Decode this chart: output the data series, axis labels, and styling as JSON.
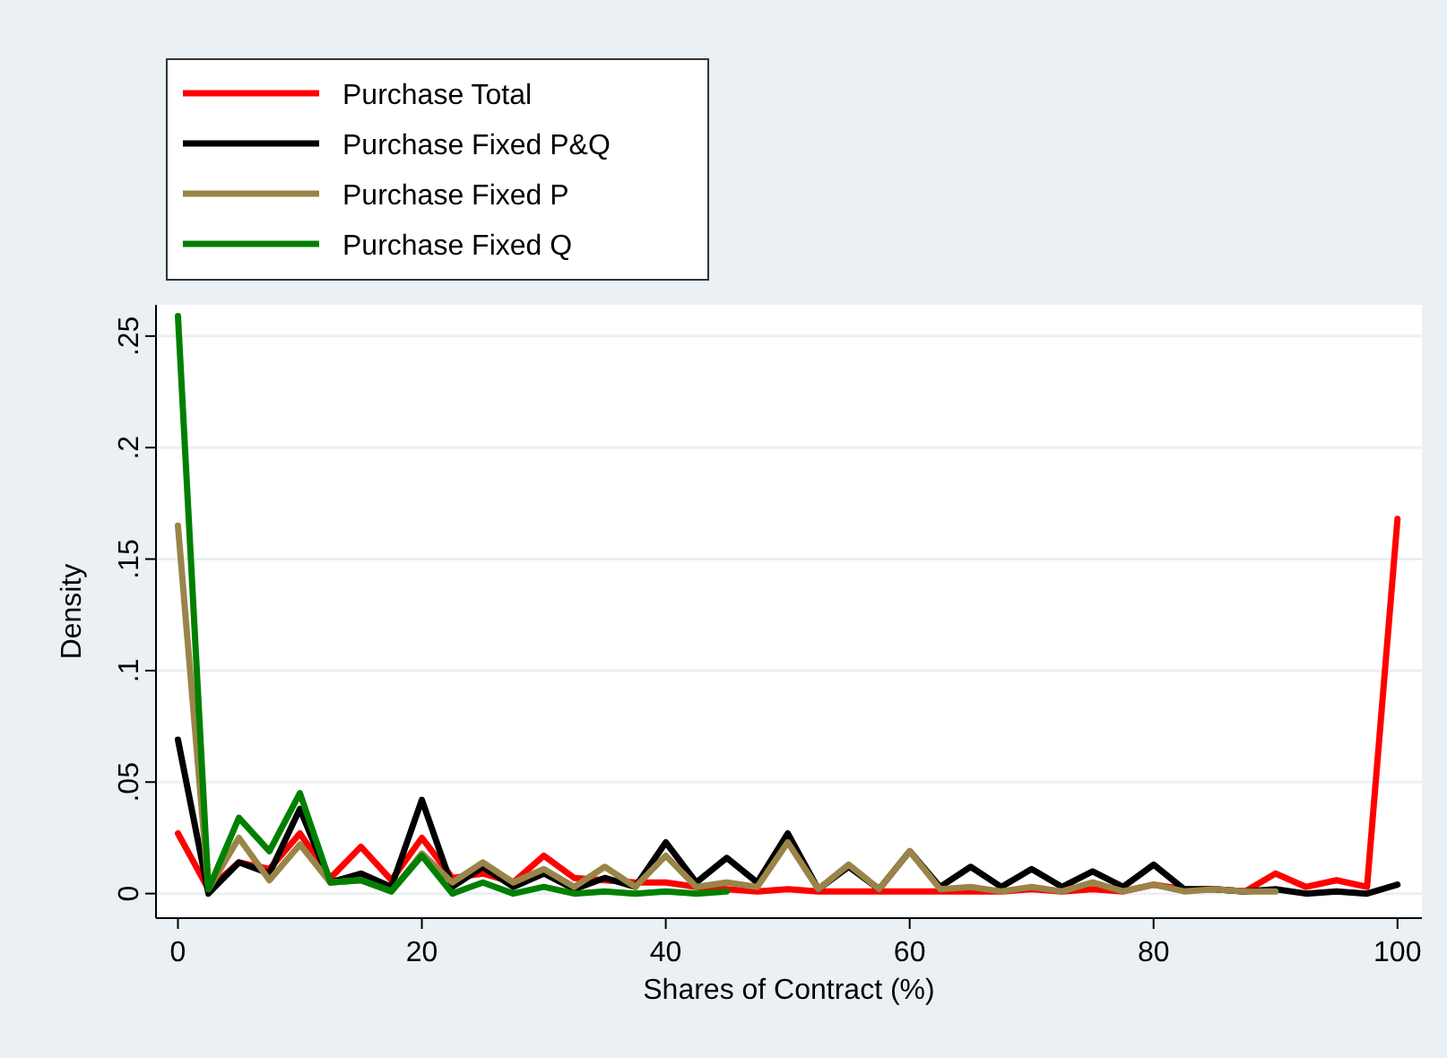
{
  "chart_data": {
    "type": "line",
    "xlabel": "Shares of Contract (%)",
    "ylabel": "Density",
    "x": [
      0,
      2.5,
      5,
      7.5,
      10,
      12.5,
      15,
      17.5,
      20,
      22.5,
      25,
      27.5,
      30,
      32.5,
      35,
      37.5,
      40,
      42.5,
      45,
      47.5,
      50,
      52.5,
      55,
      57.5,
      60,
      62.5,
      65,
      67.5,
      70,
      72.5,
      75,
      77.5,
      80,
      82.5,
      85,
      87.5,
      90,
      92.5,
      95,
      97.5,
      100
    ],
    "series": [
      {
        "name": "Purchase Total",
        "color": "#ff0000",
        "values": [
          0.027,
          0.002,
          0.014,
          0.011,
          0.027,
          0.007,
          0.021,
          0.006,
          0.025,
          0.007,
          0.009,
          0.005,
          0.017,
          0.007,
          0.006,
          0.005,
          0.005,
          0.003,
          0.002,
          0.001,
          0.002,
          0.001,
          0.001,
          0.001,
          0.001,
          0.001,
          0.001,
          0.001,
          0.002,
          0.001,
          0.002,
          0.001,
          0.004,
          0.002,
          0.002,
          0.001,
          0.009,
          0.003,
          0.006,
          0.003,
          0.168
        ]
      },
      {
        "name": "Purchase Fixed P&Q",
        "color": "#000000",
        "values": [
          0.069,
          0.0,
          0.014,
          0.009,
          0.038,
          0.005,
          0.009,
          0.003,
          0.042,
          0.003,
          0.012,
          0.003,
          0.009,
          0.002,
          0.007,
          0.003,
          0.023,
          0.005,
          0.016,
          0.005,
          0.027,
          0.002,
          0.012,
          0.002,
          0.019,
          0.003,
          0.012,
          0.003,
          0.011,
          0.003,
          0.01,
          0.003,
          0.013,
          0.002,
          0.002,
          0.001,
          0.002,
          0.0,
          0.001,
          0.0,
          0.004
        ]
      },
      {
        "name": "Purchase Fixed P",
        "color": "#9a8448",
        "values": [
          0.165,
          0.002,
          0.025,
          0.006,
          0.022,
          0.005,
          0.006,
          0.001,
          0.018,
          0.005,
          0.014,
          0.005,
          0.011,
          0.003,
          0.012,
          0.003,
          0.017,
          0.003,
          0.005,
          0.003,
          0.023,
          0.002,
          0.013,
          0.002,
          0.019,
          0.002,
          0.003,
          0.001,
          0.003,
          0.001,
          0.005,
          0.001,
          0.004,
          0.001,
          0.002,
          0.001,
          0.001,
          null,
          null,
          null,
          null
        ]
      },
      {
        "name": "Purchase Fixed Q",
        "color": "#008000",
        "values": [
          0.259,
          0.002,
          0.034,
          0.019,
          0.045,
          0.005,
          0.006,
          0.001,
          0.017,
          0.0,
          0.005,
          0.0,
          0.003,
          0.0,
          0.001,
          0.0,
          0.001,
          0.0,
          0.001,
          null,
          null,
          null,
          null,
          null,
          null,
          null,
          null,
          null,
          null,
          null,
          null,
          null,
          null,
          null,
          null,
          null,
          null,
          null,
          null,
          null,
          null
        ]
      }
    ],
    "xlim": [
      -1.8,
      102
    ],
    "xticks": [
      0,
      20,
      40,
      60,
      80,
      100
    ],
    "ylim": [
      -0.011,
      0.264
    ],
    "yticks": [
      {
        "value": 0,
        "label": "0"
      },
      {
        "value": 0.05,
        "label": ".05"
      },
      {
        "value": 0.1,
        "label": ".1"
      },
      {
        "value": 0.15,
        "label": ".15"
      },
      {
        "value": 0.2,
        "label": ".2"
      },
      {
        "value": 0.25,
        "label": ".25"
      }
    ],
    "grid": "y",
    "legend": "top left"
  }
}
